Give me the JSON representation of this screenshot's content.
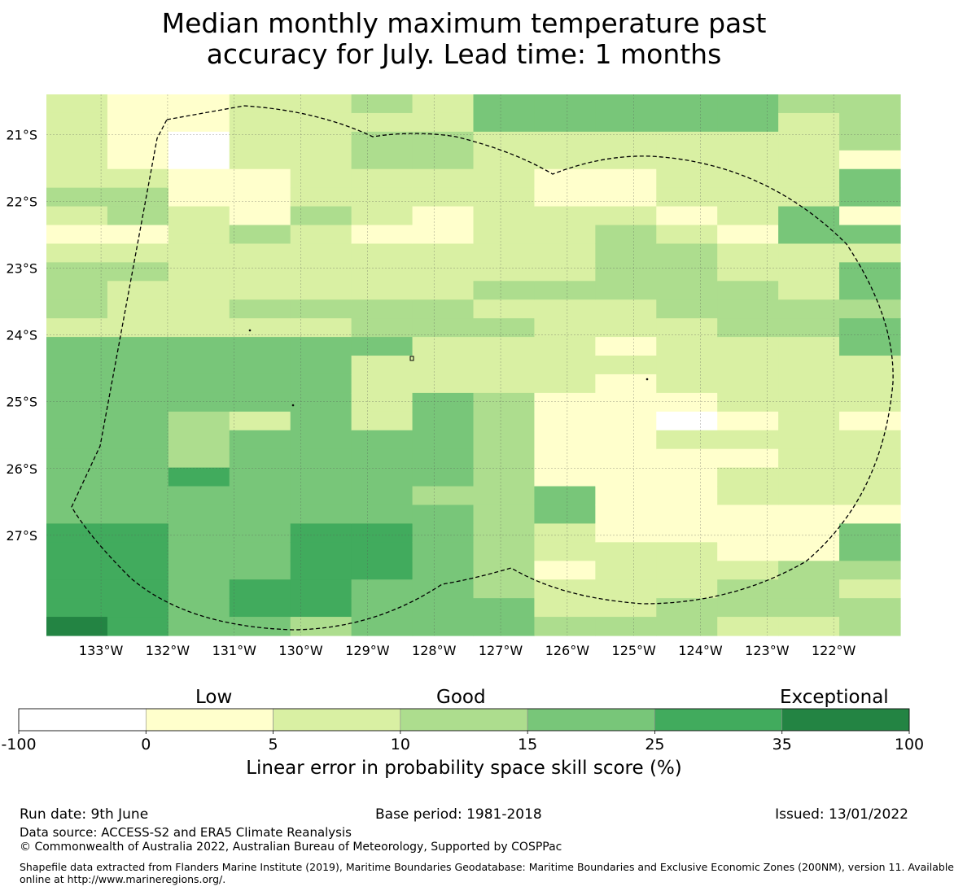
{
  "title": {
    "line1": "Median monthly maximum temperature past",
    "line2": "accuracy for July. Lead time: 1 months"
  },
  "map": {
    "extent": {
      "lon_min": -133.82,
      "lon_max": -121.0,
      "lat_min": -28.5,
      "lat_max": -20.4
    },
    "lon_ticks": [
      {
        "value": -133,
        "label": "133°W"
      },
      {
        "value": -132,
        "label": "132°W"
      },
      {
        "value": -131,
        "label": "131°W"
      },
      {
        "value": -130,
        "label": "130°W"
      },
      {
        "value": -129,
        "label": "129°W"
      },
      {
        "value": -128,
        "label": "128°W"
      },
      {
        "value": -127,
        "label": "127°W"
      },
      {
        "value": -126,
        "label": "126°W"
      },
      {
        "value": -125,
        "label": "125°W"
      },
      {
        "value": -124,
        "label": "124°W"
      },
      {
        "value": -123,
        "label": "123°W"
      },
      {
        "value": -122,
        "label": "122°W"
      }
    ],
    "lat_ticks": [
      {
        "value": -21,
        "label": "21°S"
      },
      {
        "value": -22,
        "label": "22°S"
      },
      {
        "value": -23,
        "label": "23°S"
      },
      {
        "value": -24,
        "label": "24°S"
      },
      {
        "value": -25,
        "label": "25°S"
      },
      {
        "value": -26,
        "label": "26°S"
      },
      {
        "value": -27,
        "label": "27°S"
      }
    ],
    "grid_lines": true,
    "boundary": "EEZ outline (dashed)",
    "class_colors": [
      "#ffffff",
      "#ffffcc",
      "#d9f0a3",
      "#addd8e",
      "#78c679",
      "#41ab5d",
      "#238443"
    ],
    "skill_class_rows": [
      "21122324444433",
      "21122224444423",
      "21022332222223",
      "21022332222221",
      "22112222112224",
      "33112222112224",
      "23213212221241",
      "11232112232144",
      "22222222233222",
      "33222222233224",
      "32222223333324",
      "32233332223333",
      "22222333222334",
      "44444422212224",
      "44444222222222",
      "44444222212222",
      "44444243111222",
      "44324243110121",
      "44344443112222",
      "44344443111122",
      "44544443111222",
      "44444433411222",
      "44444443411111",
      "55445543211114",
      "55445543222114",
      "55445543122233",
      "55455443222332",
      "55455444223333",
      "65443444333223"
    ]
  },
  "colorbar": {
    "categories": [
      {
        "from": -100,
        "to": 0,
        "color": "#ffffff"
      },
      {
        "from": 0,
        "to": 5,
        "color": "#ffffcc"
      },
      {
        "from": 5,
        "to": 10,
        "color": "#d9f0a3"
      },
      {
        "from": 10,
        "to": 15,
        "color": "#addd8e"
      },
      {
        "from": 15,
        "to": 25,
        "color": "#78c679"
      },
      {
        "from": 25,
        "to": 35,
        "color": "#41ab5d"
      },
      {
        "from": 35,
        "to": 100,
        "color": "#238443"
      }
    ],
    "tick_labels": [
      "-100",
      "0",
      "5",
      "10",
      "15",
      "25",
      "35",
      "100"
    ],
    "heading_low": "Low",
    "heading_good": "Good",
    "heading_exceptional": "Exceptional",
    "axis_label": "Linear error in probability space skill score (%)"
  },
  "footer": {
    "run_date": "Run date: 9th June",
    "base_period": "Base period: 1981-2018",
    "issued": "Issued: 13/01/2022",
    "data_source": "Data source: ACCESS-S2 and ERA5 Climate Reanalysis",
    "copyright": "© Commonwealth of Australia 2022, Australian Bureau of Meteorology, Supported by COSPPac",
    "shapefile_line1": "Shapefile data extracted from Flanders Marine Institute (2019), Maritime Boundaries Geodatabase: Maritime Boundaries and Exclusive Economic Zones (200NM), version 11. Available",
    "shapefile_line2": "online at http://www.marineregions.org/."
  }
}
